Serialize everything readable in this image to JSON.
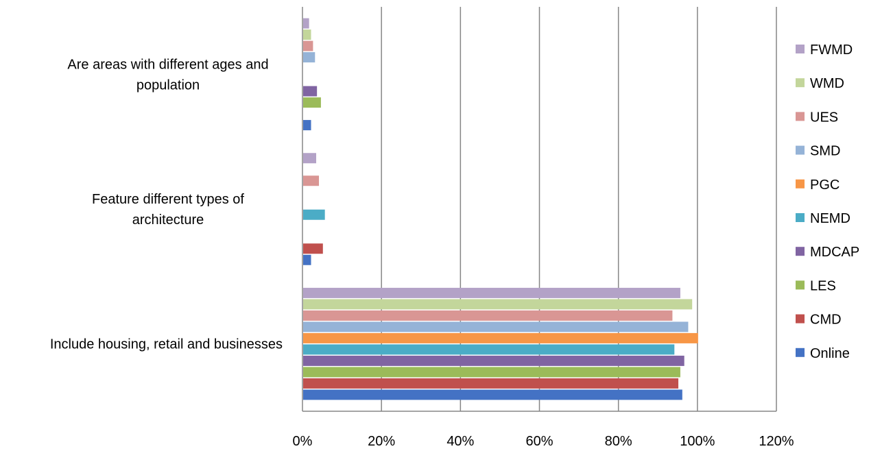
{
  "chart_data": {
    "type": "bar",
    "orientation": "horizontal",
    "categories": [
      "Include housing, retail and businesses",
      "Feature different types of architecture",
      "Are areas with different ages and population"
    ],
    "category_lines": [
      [
        "Include housing, retail and businesses"
      ],
      [
        "Feature different types of",
        "architecture"
      ],
      [
        "Are areas with  different ages and",
        "population"
      ]
    ],
    "series": [
      {
        "name": "Online",
        "color": "#4472C4",
        "values": [
          96,
          2,
          2
        ]
      },
      {
        "name": "CMD",
        "color": "#C0504D",
        "values": [
          95,
          5,
          0
        ]
      },
      {
        "name": "LES",
        "color": "#9BBB59",
        "values": [
          95.5,
          0,
          4.5
        ]
      },
      {
        "name": "MDCAP",
        "color": "#8064A2",
        "values": [
          96.5,
          0,
          3.5
        ]
      },
      {
        "name": "NEMD",
        "color": "#4BACC6",
        "values": [
          94,
          5.5,
          0
        ]
      },
      {
        "name": "PGC",
        "color": "#F79646",
        "values": [
          100,
          0,
          0
        ]
      },
      {
        "name": "SMD",
        "color": "#95B3D7",
        "values": [
          97.5,
          0,
          3
        ]
      },
      {
        "name": "UES",
        "color": "#D99694",
        "values": [
          93.5,
          4,
          2.5
        ]
      },
      {
        "name": "WMD",
        "color": "#C3D69B",
        "values": [
          98.5,
          0,
          2
        ]
      },
      {
        "name": "FWMD",
        "color": "#B3A2C7",
        "values": [
          95.5,
          3.3,
          1.5
        ]
      }
    ],
    "xlim": [
      0,
      120
    ],
    "xticks": [
      0,
      20,
      40,
      60,
      80,
      100,
      120
    ],
    "xtick_labels": [
      "0%",
      "20%",
      "40%",
      "60%",
      "80%",
      "100%",
      "120%"
    ],
    "grid": true,
    "legend_position": "right",
    "title": "",
    "xlabel": "",
    "ylabel": ""
  }
}
